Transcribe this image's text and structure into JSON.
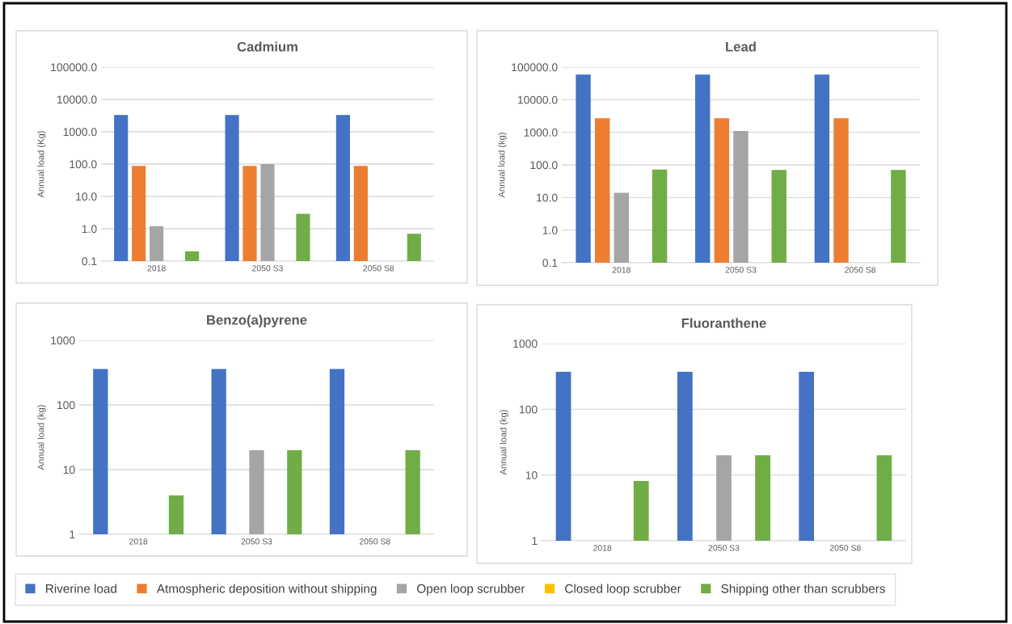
{
  "chart_data": [
    {
      "type": "bar",
      "title": "Cadmium",
      "ylabel": "Annual load (Kg)",
      "log": true,
      "grid": "y",
      "legend": "bottom",
      "categories": [
        "2018",
        "2050 S3",
        "2050 S8"
      ],
      "ylim": [
        0.1,
        100000
      ],
      "yticks": [
        0.1,
        {
          "value": 1,
          "label": "1.0"
        },
        {
          "value": 10,
          "label": "10.0"
        },
        {
          "value": 100,
          "label": "100.0"
        },
        {
          "value": 1000,
          "label": "1000.0"
        },
        {
          "value": 10000,
          "label": "10000.0"
        },
        {
          "value": 100000,
          "label": "100000.0"
        }
      ],
      "series": [
        {
          "name": "Riverine load",
          "color": "#4472c4",
          "values": [
            3300,
            3300,
            3300
          ]
        },
        {
          "name": "Atmospheric deposition without shipping",
          "color": "#ed7d31",
          "values": [
            88,
            88,
            88
          ]
        },
        {
          "name": "Open loop scrubber",
          "color": "#a5a5a5",
          "values": [
            1.2,
            100,
            null
          ]
        },
        {
          "name": "Closed loop scrubber",
          "color": "#ffc000",
          "values": [
            null,
            null,
            null
          ]
        },
        {
          "name": "Shipping other than scrubbers",
          "color": "#70ad47",
          "values": [
            0.2,
            2.9,
            0.7
          ]
        }
      ]
    },
    {
      "type": "bar",
      "title": "Lead",
      "ylabel": "Annual load (kg)",
      "log": true,
      "grid": "y",
      "categories": [
        "2018",
        "2050 S3",
        "2050 S8"
      ],
      "ylim": [
        0.1,
        100000
      ],
      "yticks": [
        0.1,
        {
          "value": 1,
          "label": "1.0"
        },
        {
          "value": 10,
          "label": "10.0"
        },
        {
          "value": 100,
          "label": "100.0"
        },
        {
          "value": 1000,
          "label": "1000.0"
        },
        {
          "value": 10000,
          "label": "10000.0"
        },
        {
          "value": 100000,
          "label": "100000.0"
        }
      ],
      "series": [
        {
          "color": "#4472c4",
          "values": [
            59000,
            59000,
            59000
          ]
        },
        {
          "color": "#ed7d31",
          "values": [
            2700,
            2700,
            2700
          ]
        },
        {
          "color": "#a5a5a5",
          "values": [
            14,
            1100,
            null
          ]
        },
        {
          "values": [
            null,
            null,
            null
          ]
        },
        {
          "color": "#70ad47",
          "values": [
            72,
            70,
            70
          ]
        }
      ]
    },
    {
      "type": "bar",
      "title": "Benzo(a)pyrene",
      "ylabel": "Annual load (kg)",
      "log": true,
      "grid": "y",
      "categories": [
        "2018",
        "2050 S3",
        "2050 S8"
      ],
      "ylim": [
        1,
        1000
      ],
      "yticks": [
        1,
        10,
        100,
        1000
      ],
      "series": [
        {
          "color": "#4472c4",
          "values": [
            360,
            360,
            360
          ]
        },
        {
          "values": [
            null,
            null,
            null
          ]
        },
        {
          "color": "#a5a5a5",
          "values": [
            null,
            20,
            null
          ]
        },
        {
          "values": [
            null,
            null,
            null
          ]
        },
        {
          "color": "#70ad47",
          "values": [
            4,
            20,
            20
          ]
        }
      ]
    },
    {
      "type": "bar",
      "title": "Fluoranthene",
      "ylabel": "Annual load (kg)",
      "log": true,
      "grid": "y",
      "categories": [
        "2018",
        "2050 S3",
        "2050 S8"
      ],
      "ylim": [
        1,
        1000
      ],
      "yticks": [
        1,
        10,
        100,
        1000
      ],
      "series": [
        {
          "color": "#4472c4",
          "values": [
            370,
            370,
            370
          ]
        },
        {
          "values": [
            null,
            null,
            null
          ]
        },
        {
          "color": "#a5a5a5",
          "values": [
            null,
            20,
            null
          ]
        },
        {
          "values": [
            null,
            null,
            null
          ]
        },
        {
          "color": "#70ad47",
          "values": [
            8.1,
            20,
            20
          ]
        }
      ]
    }
  ]
}
